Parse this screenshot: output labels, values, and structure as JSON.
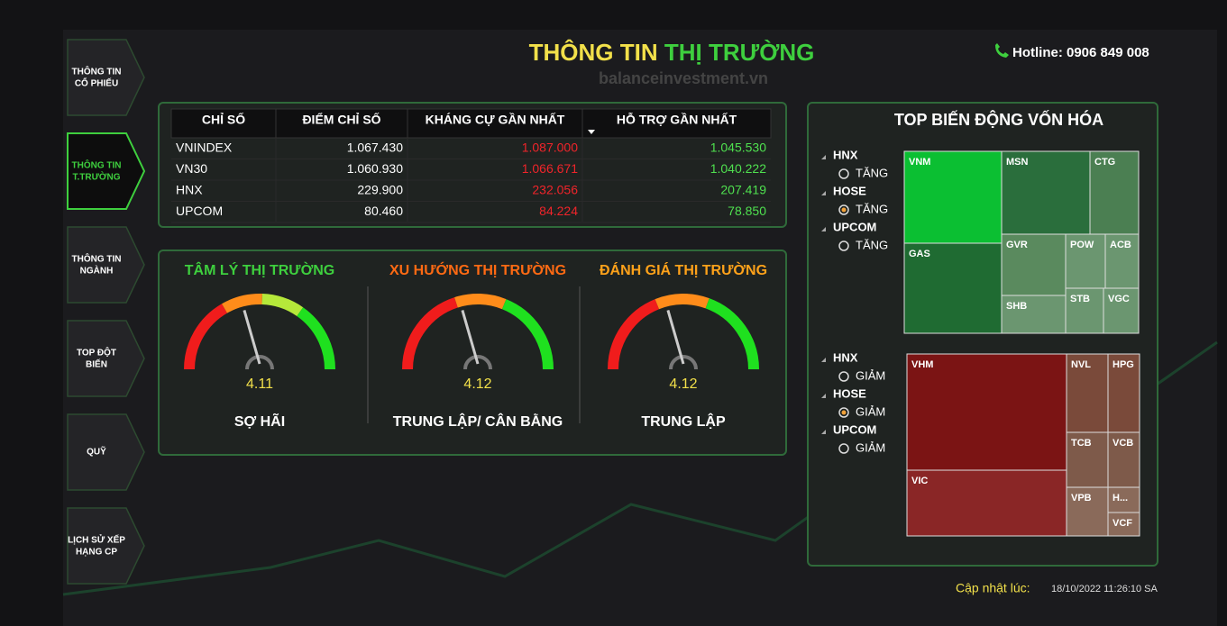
{
  "header": {
    "title_part1": "THÔNG TIN",
    "title_part2": "THỊ TRƯỜNG",
    "hotline": "Hotline: 0906 849 008",
    "watermark": "balanceinvestment.vn"
  },
  "nav": {
    "items": [
      "THÔNG TIN CỔ PHIẾU",
      "THÔNG TIN T.TRƯỜNG",
      "THÔNG TIN NGÀNH",
      "TOP ĐỘT BIẾN",
      "QUỸ",
      "LỊCH SỬ XẾP HẠNG CP"
    ],
    "active_index": 1
  },
  "table": {
    "columns": [
      "CHỈ SỐ",
      "ĐIỂM CHỈ SỐ",
      "KHÁNG CỰ GẦN NHẤT",
      "HỖ TRỢ GẦN NHẤT"
    ],
    "rows": [
      [
        "VNINDEX",
        "1.067.430",
        "1.087.000",
        "1.045.530"
      ],
      [
        "VN30",
        "1.060.930",
        "1.066.671",
        "1.040.222"
      ],
      [
        "HNX",
        "229.900",
        "232.056",
        "207.419"
      ],
      [
        "UPCOM",
        "80.460",
        "84.224",
        "78.850"
      ]
    ]
  },
  "gauges": [
    {
      "title": "TÂM LÝ THỊ TRƯỜNG",
      "value": "4.11",
      "label": "SỢ HÃI"
    },
    {
      "title": "XU HƯỚNG THỊ TRƯỜNG",
      "value": "4.12",
      "label": "TRUNG LẬP/ CÂN BẰNG"
    },
    {
      "title": "ĐÁNH GIÁ THỊ TRƯỜNG",
      "value": "4.12",
      "label": "TRUNG LẬP"
    }
  ],
  "top_cap": {
    "title": "TOP BIẾN ĐỘNG VỐN HÓA",
    "filters_up": [
      {
        "exchange": "HNX",
        "option": "TĂNG"
      },
      {
        "exchange": "HOSE",
        "option": "TĂNG"
      },
      {
        "exchange": "UPCOM",
        "option": "TĂNG"
      }
    ],
    "selected_up": 1,
    "tiles_up": [
      "VNM",
      "GAS",
      "MSN",
      "CTG",
      "GVR",
      "POW",
      "ACB",
      "SHB",
      "STB",
      "VGC"
    ],
    "filters_down": [
      {
        "exchange": "HNX",
        "option": "GIẢM"
      },
      {
        "exchange": "HOSE",
        "option": "GIẢM"
      },
      {
        "exchange": "UPCOM",
        "option": "GIẢM"
      }
    ],
    "selected_down": 1,
    "tiles_down": [
      "VHM",
      "VIC",
      "NVL",
      "HPG",
      "TCB",
      "VCB",
      "VPB",
      "H...",
      "VCF"
    ]
  },
  "footer": {
    "updated_label": "Cập nhật lúc:",
    "updated_time": "18/10/2022 11:26:10 SA"
  }
}
